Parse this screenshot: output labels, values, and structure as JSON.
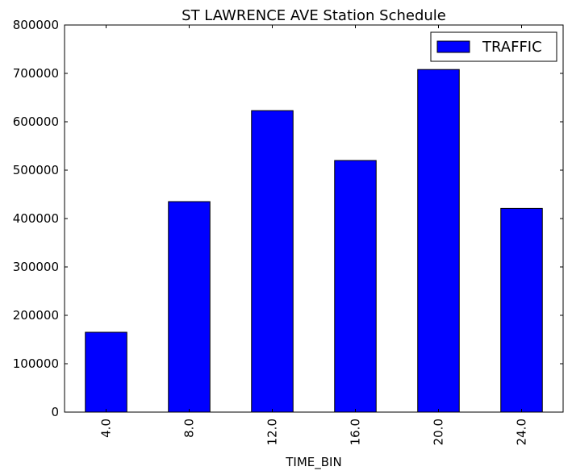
{
  "chart_data": {
    "type": "bar",
    "title": "ST LAWRENCE AVE Station Schedule",
    "xlabel": "TIME_BIN",
    "ylabel": "",
    "categories": [
      "4.0",
      "8.0",
      "12.0",
      "16.0",
      "20.0",
      "24.0"
    ],
    "series": [
      {
        "name": "TRAFFIC",
        "color": "#0000ff",
        "values": [
          165000,
          435000,
          623000,
          520000,
          708000,
          421000
        ]
      }
    ],
    "ylim": [
      0,
      800000
    ],
    "yticks": [
      "0",
      "100000",
      "200000",
      "300000",
      "400000",
      "500000",
      "600000",
      "700000",
      "800000"
    ],
    "grid": false,
    "legend_position": "top-right"
  }
}
